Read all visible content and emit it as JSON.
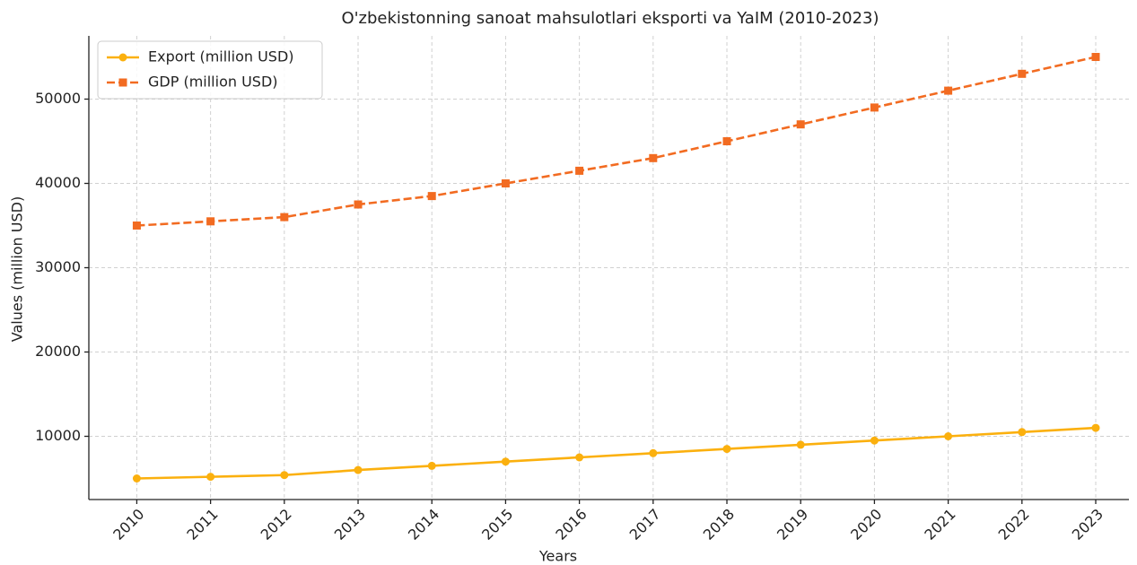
{
  "chart_data": {
    "type": "line",
    "title": "O'zbekistonning sanoat mahsulotlari eksporti va YaIM (2010-2023)",
    "x_label": "Years",
    "y_label": "Values (million USD)",
    "x": [
      2010,
      2011,
      2012,
      2013,
      2014,
      2015,
      2016,
      2017,
      2018,
      2019,
      2020,
      2021,
      2022,
      2023
    ],
    "series": [
      {
        "name": "Export (million USD)",
        "color": "#fbb00e",
        "marker": "circle",
        "dash": "solid",
        "values": [
          5000,
          5200,
          5400,
          6000,
          6500,
          7000,
          7500,
          8000,
          8500,
          9000,
          9500,
          10000,
          10500,
          11000
        ]
      },
      {
        "name": "GDP (million USD)",
        "color": "#f26b21",
        "marker": "square",
        "dash": "dashed",
        "values": [
          35000,
          35500,
          36000,
          37500,
          38500,
          40000,
          41500,
          43000,
          45000,
          47000,
          49000,
          51000,
          53000,
          55000
        ]
      }
    ],
    "xlim": [
      2009.35,
      2023.45
    ],
    "xticks": [
      2010,
      2011,
      2012,
      2013,
      2014,
      2015,
      2016,
      2017,
      2018,
      2019,
      2020,
      2021,
      2022,
      2023
    ],
    "ylim": [
      2500,
      57500
    ],
    "yticks": [
      10000,
      20000,
      30000,
      40000,
      50000
    ],
    "grid": true,
    "legend": "upper left"
  }
}
